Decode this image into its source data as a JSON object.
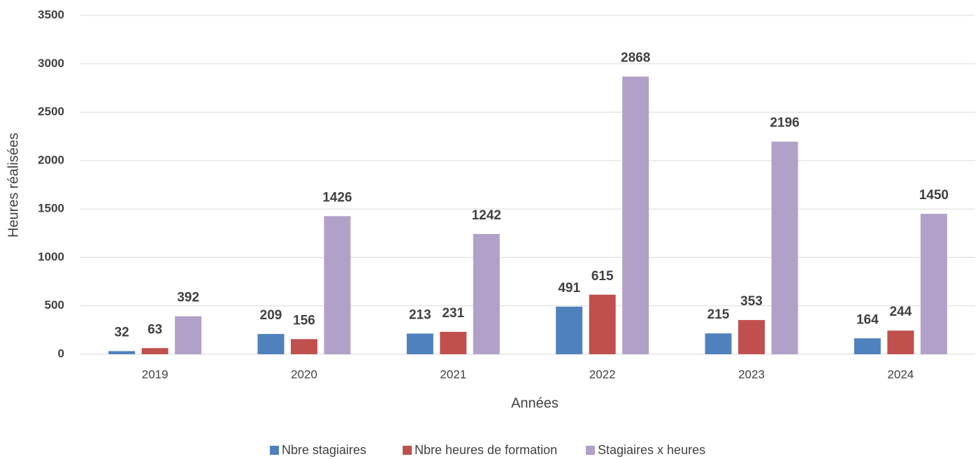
{
  "chart_data": {
    "type": "bar",
    "xlabel": "Années",
    "ylabel": "Heures réalisées",
    "categories": [
      "2019",
      "2020",
      "2021",
      "2022",
      "2023",
      "2024"
    ],
    "series": [
      {
        "name": "Nbre stagiaires",
        "color": "#4f81bd",
        "values": [
          32,
          209,
          213,
          491,
          215,
          164
        ]
      },
      {
        "name": "Nbre heures de formation",
        "color": "#c0504d",
        "values": [
          63,
          156,
          231,
          615,
          353,
          244
        ]
      },
      {
        "name": "Stagiaires x heures",
        "color": "#b1a0c7",
        "values": [
          392,
          1426,
          1242,
          2868,
          2196,
          1450
        ]
      }
    ],
    "ylim": [
      0,
      3500
    ],
    "yticks": [
      0,
      500,
      1000,
      1500,
      2000,
      2500,
      3000,
      3500
    ],
    "grid": true,
    "legend": "bottom"
  }
}
